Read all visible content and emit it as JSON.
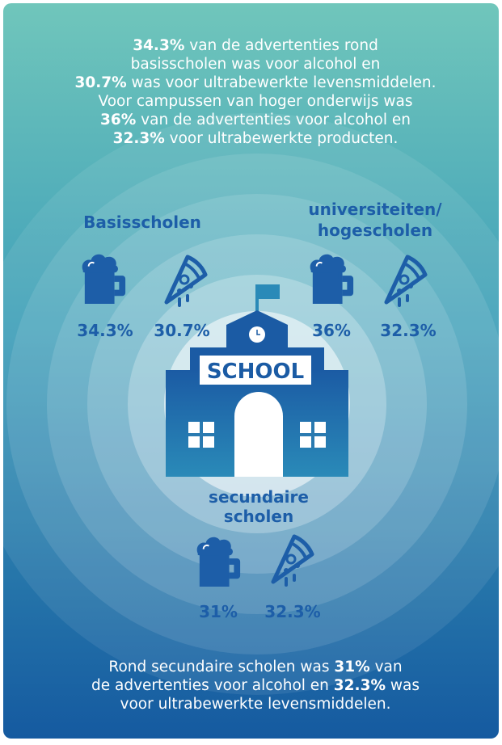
{
  "intro": {
    "lines": [
      [
        {
          "text": "34.3%",
          "bold": true
        },
        {
          "text": " van de advertenties rond",
          "bold": false
        }
      ],
      [
        {
          "text": "basisscholen was voor alcohol en",
          "bold": false
        }
      ],
      [
        {
          "text": "30.7%",
          "bold": true
        },
        {
          "text": " was voor ultrabewerkte levensmiddelen.",
          "bold": false
        }
      ],
      [
        {
          "text": "Voor campussen van hoger onderwijs was",
          "bold": false
        }
      ],
      [
        {
          "text": "36%",
          "bold": true
        },
        {
          "text": " van de advertenties voor alcohol en",
          "bold": false
        }
      ],
      [
        {
          "text": "32.3%",
          "bold": true
        },
        {
          "text": " voor ultrabewerkte producten.",
          "bold": false
        }
      ]
    ]
  },
  "groups": [
    {
      "title": [
        "Basisscholen"
      ],
      "alcohol": "34.3%",
      "food": "30.7%"
    },
    {
      "title": [
        "universiteiten/",
        "hogescholen"
      ],
      "alcohol": "36%",
      "food": "32.3%"
    },
    {
      "title": [
        "secundaire",
        "scholen"
      ],
      "alcohol": "31%",
      "food": "32.3%"
    }
  ],
  "school_sign": "SCHOOL",
  "footer": {
    "lines": [
      [
        {
          "text": "Rond secundaire scholen was ",
          "bold": false
        },
        {
          "text": "31%",
          "bold": true
        },
        {
          "text": " van",
          "bold": false
        }
      ],
      [
        {
          "text": "de advertenties voor alcohol en ",
          "bold": false
        },
        {
          "text": "32.3%",
          "bold": true
        },
        {
          "text": " was",
          "bold": false
        }
      ],
      [
        {
          "text": "voor ultrabewerkte levensmiddelen.",
          "bold": false
        }
      ]
    ]
  }
}
